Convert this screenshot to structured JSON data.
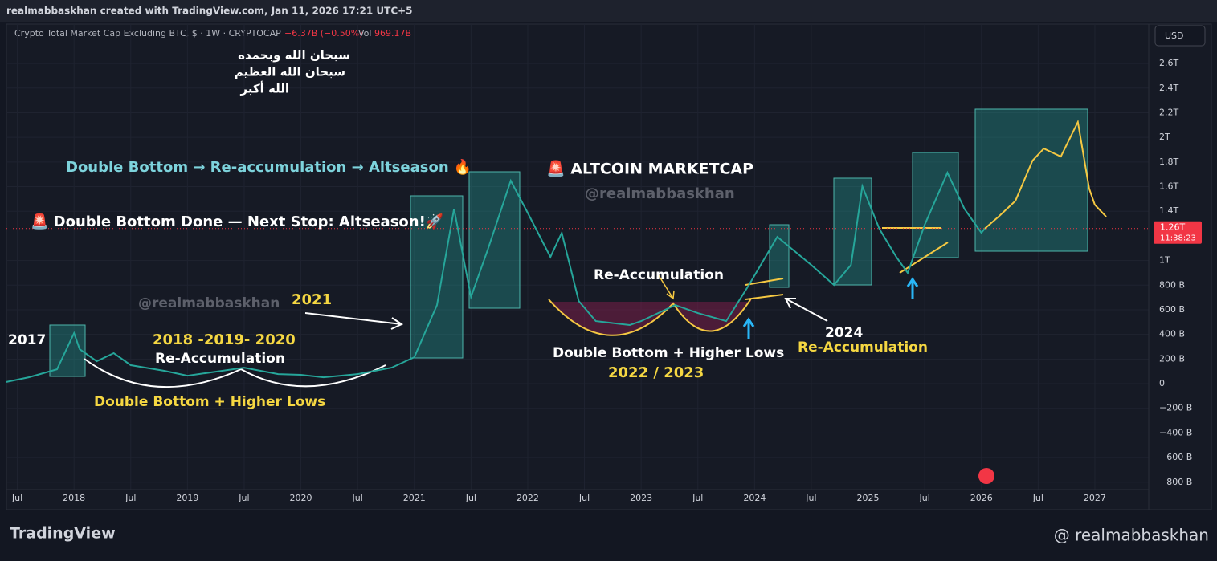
{
  "header": {
    "credit": "realmabbaskhan created with TradingView.com, Jan 11, 2026 17:21 UTC+5",
    "symbol": "Crypto Total Market Cap Excluding BTC, $ · 1W · CRYPTOCAP",
    "change": "−6.37B (−0.50%)",
    "volume_label": "Vol",
    "volume": "969.17B",
    "currency": "USD"
  },
  "chart_data": {
    "type": "line",
    "ylim": [
      -860,
      2920
    ],
    "yticks": [
      {
        "value": 2600,
        "label": "2.6T"
      },
      {
        "value": 2400,
        "label": "2.4T"
      },
      {
        "value": 2200,
        "label": "2.2T"
      },
      {
        "value": 2000,
        "label": "2T"
      },
      {
        "value": 1800,
        "label": "1.8T"
      },
      {
        "value": 1600,
        "label": "1.6T"
      },
      {
        "value": 1400,
        "label": "1.4T"
      },
      {
        "value": 1000,
        "label": "1T"
      },
      {
        "value": 800,
        "label": "800 B"
      },
      {
        "value": 600,
        "label": "600 B"
      },
      {
        "value": 400,
        "label": "400 B"
      },
      {
        "value": 200,
        "label": "200 B"
      },
      0,
      {
        "value": -200,
        "label": "−200 B"
      },
      {
        "value": -400,
        "label": "−400 B"
      },
      {
        "value": -600,
        "label": "−600 B"
      },
      {
        "value": -800,
        "label": "−800 B"
      }
    ],
    "xlim": [
      2017.404,
      2027.475
    ],
    "xticks": [
      {
        "value": 2017.5,
        "label": "Jul"
      },
      {
        "value": 2018,
        "label": "2018"
      },
      {
        "value": 2018.5,
        "label": "Jul"
      },
      {
        "value": 2019,
        "label": "2019"
      },
      {
        "value": 2019.5,
        "label": "Jul"
      },
      {
        "value": 2020,
        "label": "2020"
      },
      {
        "value": 2020.5,
        "label": "Jul"
      },
      {
        "value": 2021,
        "label": "2021"
      },
      {
        "value": 2021.5,
        "label": "Jul"
      },
      {
        "value": 2022,
        "label": "2022"
      },
      {
        "value": 2022.5,
        "label": "Jul"
      },
      {
        "value": 2023,
        "label": "2023"
      },
      {
        "value": 2023.5,
        "label": "Jul"
      },
      {
        "value": 2024,
        "label": "2024"
      },
      {
        "value": 2024.5,
        "label": "Jul"
      },
      {
        "value": 2025,
        "label": "2025"
      },
      {
        "value": 2025.5,
        "label": "Jul"
      },
      {
        "value": 2026,
        "label": "2026"
      },
      {
        "value": 2026.5,
        "label": "Jul"
      },
      {
        "value": 2027,
        "label": "2027"
      }
    ],
    "grid": true,
    "series": [
      {
        "color": "#26a69a",
        "x": [
          2017.4,
          2017.6,
          2017.85,
          2018.0,
          2018.05,
          2018.2,
          2018.35,
          2018.5,
          2018.8,
          2019.0,
          2019.3,
          2019.5,
          2019.8,
          2020.0,
          2020.2,
          2020.5,
          2020.8,
          2021.0,
          2021.2,
          2021.35,
          2021.5,
          2021.65,
          2021.85,
          2022.0,
          2022.2,
          2022.3,
          2022.45,
          2022.6,
          2022.9,
          2023.0,
          2023.3,
          2023.5,
          2023.75,
          2023.95,
          2024.2,
          2024.5,
          2024.7,
          2024.85,
          2024.95,
          2025.1,
          2025.25,
          2025.35,
          2025.5,
          2025.7,
          2025.85,
          2026.0,
          2026.03
        ],
        "values": [
          13,
          52,
          117,
          410,
          280,
          182,
          248,
          150,
          104,
          65,
          104,
          130,
          78,
          72,
          52,
          78,
          130,
          215,
          638,
          1420,
          704,
          1094,
          1648,
          1388,
          1029,
          1225,
          671,
          508,
          476,
          508,
          638,
          573,
          508,
          801,
          1192,
          964,
          801,
          964,
          1603,
          1257,
          1029,
          899,
          1290,
          1713,
          1420,
          1225,
          1260
        ]
      },
      {
        "color": "#f5c842",
        "x": [
          2026.03,
          2026.15,
          2026.3,
          2026.45,
          2026.55,
          2026.7,
          2026.85,
          2026.95,
          2027.0,
          2027.1
        ],
        "values": [
          1260,
          1355,
          1485,
          1811,
          1909,
          1844,
          2124,
          1583,
          1453,
          1355
        ]
      }
    ],
    "last_price": {
      "value": 1260,
      "label": "1.26T"
    },
    "countdown": "11:38:23",
    "annotations": [
      "سبحان الله وبحمده",
      "سبحان الله العظيم",
      "الله أكبر",
      "Double Bottom → Re-accumulation → Altseason 🔥",
      "🚨 ALTCOIN MARKETCAP",
      "@realmabbaskhan",
      "🚨 Double Bottom Done — Next Stop: Altseason!🚀",
      "@realmabbaskhan",
      "2021",
      "2017",
      "2018 -2019- 2020",
      "Re-Accumulation",
      "Double Bottom + Higher Lows",
      "Re-Accumulation",
      "Double Bottom + Higher Lows",
      "2022 / 2023",
      "2024",
      "Re-Accumulation"
    ]
  },
  "footer": {
    "brand": "TradingView",
    "handle": "@ realmabbaskhan"
  }
}
